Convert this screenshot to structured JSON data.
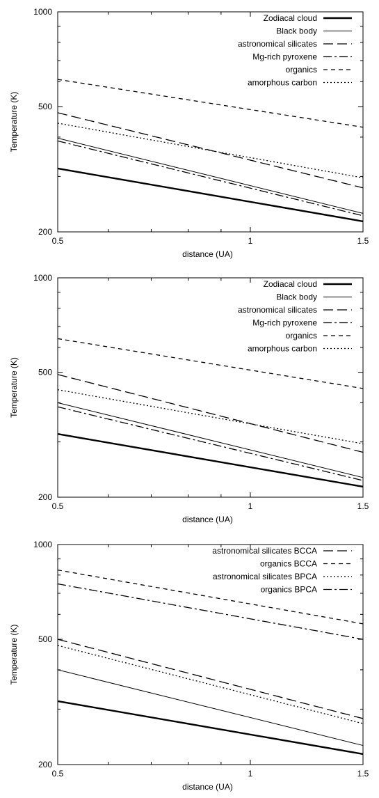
{
  "chart_data": [
    {
      "type": "line",
      "xlabel": "distance (UA)",
      "ylabel": "Temperature (K)",
      "xscale": "log",
      "yscale": "log",
      "xlim": [
        0.5,
        1.5
      ],
      "ylim": [
        200,
        1000
      ],
      "xticks": [
        "0.5",
        "1",
        "1.5"
      ],
      "yticks": [
        "200",
        "500",
        "1000"
      ],
      "legend_position": "top-right",
      "series": [
        {
          "name": "Zodiacal cloud",
          "x": [
            0.5,
            1.5
          ],
          "y": [
            318,
            216
          ]
        },
        {
          "name": "Black body",
          "x": [
            0.5,
            1.5
          ],
          "y": [
            397,
            229
          ]
        },
        {
          "name": "astronomical silicates",
          "x": [
            0.5,
            1.5
          ],
          "y": [
            478,
            276
          ]
        },
        {
          "name": "Mg-rich pyroxene",
          "x": [
            0.5,
            1.5
          ],
          "y": [
            389,
            225
          ]
        },
        {
          "name": "organics",
          "x": [
            0.5,
            1.5
          ],
          "y": [
            610,
            430
          ]
        },
        {
          "name": "amorphous carbon",
          "x": [
            0.5,
            1.5
          ],
          "y": [
            443,
            297
          ]
        }
      ]
    },
    {
      "type": "line",
      "xlabel": "distance (UA)",
      "ylabel": "Temperature (K)",
      "xscale": "log",
      "yscale": "log",
      "xlim": [
        0.5,
        1.5
      ],
      "ylim": [
        200,
        1000
      ],
      "xticks": [
        "0.5",
        "1",
        "1.5"
      ],
      "yticks": [
        "200",
        "500",
        "1000"
      ],
      "legend_position": "top-right",
      "series": [
        {
          "name": "Zodiacal cloud",
          "x": [
            0.5,
            1.5
          ],
          "y": [
            318,
            216
          ]
        },
        {
          "name": "Black body",
          "x": [
            0.5,
            1.5
          ],
          "y": [
            400,
            231
          ]
        },
        {
          "name": "astronomical silicates",
          "x": [
            0.5,
            1.5
          ],
          "y": [
            492,
            278
          ]
        },
        {
          "name": "Mg-rich pyroxene",
          "x": [
            0.5,
            1.5
          ],
          "y": [
            388,
            226
          ]
        },
        {
          "name": "organics",
          "x": [
            0.5,
            1.5
          ],
          "y": [
            640,
            444
          ]
        },
        {
          "name": "amorphous carbon",
          "x": [
            0.5,
            1.5
          ],
          "y": [
            440,
            296
          ]
        }
      ]
    },
    {
      "type": "line",
      "xlabel": "distance (UA)",
      "ylabel": "Temperature (K)",
      "xscale": "log",
      "yscale": "log",
      "xlim": [
        0.5,
        1.5
      ],
      "ylim": [
        200,
        1000
      ],
      "xticks": [
        "0.5",
        "1",
        "1.5"
      ],
      "yticks": [
        "200",
        "500",
        "1000"
      ],
      "legend_position": "top-right",
      "series": [
        {
          "name": "astronomical silicates BCCA",
          "x": [
            0.5,
            1.5
          ],
          "y": [
            500,
            280
          ]
        },
        {
          "name": "organics BCCA",
          "x": [
            0.5,
            1.5
          ],
          "y": [
            830,
            560
          ]
        },
        {
          "name": "astronomical silicates BPCA",
          "x": [
            0.5,
            1.5
          ],
          "y": [
            478,
            270
          ]
        },
        {
          "name": "organics BPCA",
          "x": [
            0.5,
            1.5
          ],
          "y": [
            750,
            500
          ]
        },
        {
          "x": [
            0.5,
            1.5
          ],
          "y": [
            400,
            230
          ]
        },
        {
          "x": [
            0.5,
            1.5
          ],
          "y": [
            318,
            216
          ]
        }
      ]
    }
  ],
  "styles": {
    "Zodiacal cloud": {
      "color": "#000000",
      "width": 2.4,
      "dash": ""
    },
    "Black body": {
      "color": "#000000",
      "width": 1,
      "dash": ""
    },
    "astronomical silicates": {
      "color": "#000000",
      "width": 1.3,
      "dash": "14,6"
    },
    "Mg-rich pyroxene": {
      "color": "#000000",
      "width": 1.3,
      "dash": "12,4,3,4"
    },
    "organics": {
      "color": "#000000",
      "width": 1.3,
      "dash": "6,5"
    },
    "amorphous carbon": {
      "color": "#000000",
      "width": 1.3,
      "dash": "2,3"
    },
    "astronomical silicates BCCA": {
      "color": "#000000",
      "width": 1.3,
      "dash": "14,6"
    },
    "organics BCCA": {
      "color": "#000000",
      "width": 1.3,
      "dash": "6,5"
    },
    "astronomical silicates BPCA": {
      "color": "#000000",
      "width": 1.3,
      "dash": "2,3"
    },
    "organics BPCA": {
      "color": "#000000",
      "width": 1.3,
      "dash": "12,4,3,4"
    }
  },
  "panel3_unlabeled_styles": [
    {
      "color": "#000000",
      "width": 1,
      "dash": ""
    },
    {
      "color": "#000000",
      "width": 2.4,
      "dash": ""
    }
  ]
}
